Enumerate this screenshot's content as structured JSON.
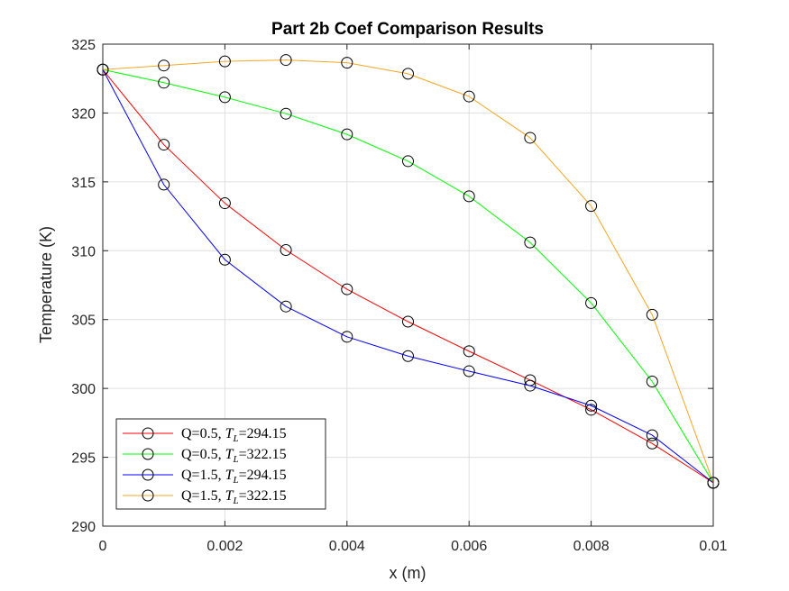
{
  "chart_data": {
    "type": "line",
    "title": "Part 2b Coef Comparison Results",
    "xlabel": "x (m)",
    "ylabel": "Temperature (K)",
    "xlim": [
      0,
      0.01
    ],
    "ylim": [
      290,
      325
    ],
    "x_ticks": [
      0,
      0.002,
      0.004,
      0.006,
      0.008,
      0.01
    ],
    "x_tick_labels": [
      "0",
      "0.002",
      "0.004",
      "0.006",
      "0.008",
      "0.01"
    ],
    "y_ticks": [
      290,
      295,
      300,
      305,
      310,
      315,
      320,
      325
    ],
    "y_tick_labels": [
      "290",
      "295",
      "300",
      "305",
      "310",
      "315",
      "320",
      "325"
    ],
    "grid": true,
    "legend_position": "bottom-left",
    "marker": "circle",
    "marker_color": "#000000",
    "x": [
      0,
      0.001,
      0.002,
      0.003,
      0.004,
      0.005,
      0.006,
      0.007,
      0.008,
      0.009,
      0.01
    ],
    "series": [
      {
        "name": "Q=0.5, T_L=294.15",
        "legend_q": "Q=0.5, ",
        "legend_t": "T",
        "legend_sub": "L",
        "legend_val": "=294.15",
        "color": "#ff0000",
        "values": [
          323.15,
          317.7,
          313.45,
          310.05,
          307.2,
          304.85,
          302.7,
          300.6,
          298.45,
          296.0,
          293.15
        ]
      },
      {
        "name": "Q=0.5, T_L=322.15",
        "legend_q": "Q=0.5, ",
        "legend_t": "T",
        "legend_sub": "L",
        "legend_val": "=322.15",
        "color": "#00ff00",
        "values": [
          323.15,
          322.2,
          321.15,
          319.95,
          318.45,
          316.5,
          313.95,
          310.6,
          306.2,
          300.5,
          293.15
        ]
      },
      {
        "name": "Q=1.5, T_L=294.15",
        "legend_q": "Q=1.5, ",
        "legend_t": "T",
        "legend_sub": "L",
        "legend_val": "=294.15",
        "color": "#0000ff",
        "values": [
          323.15,
          314.8,
          309.35,
          305.95,
          303.75,
          302.35,
          301.25,
          300.2,
          298.75,
          296.6,
          293.15
        ]
      },
      {
        "name": "Q=1.5, T_L=322.15",
        "legend_q": "Q=1.5, ",
        "legend_t": "T",
        "legend_sub": "L",
        "legend_val": "=322.15",
        "color": "#f5a623",
        "values": [
          323.15,
          323.45,
          323.75,
          323.85,
          323.65,
          322.85,
          321.2,
          318.2,
          313.25,
          305.35,
          293.15
        ]
      }
    ]
  }
}
